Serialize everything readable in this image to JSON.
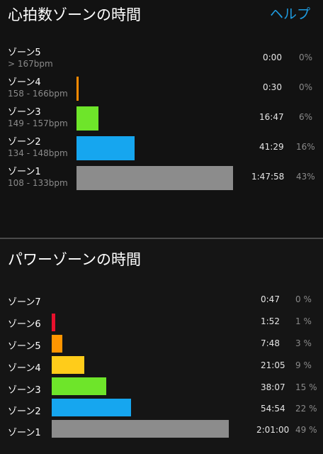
{
  "hr_section": {
    "title": "心拍数ゾーンの時間",
    "help_label": "ヘルプ",
    "zones": [
      {
        "name": "ゾーン5",
        "range": "> 167bpm",
        "time": "0:00",
        "percent": "0%",
        "share": 0,
        "color": "#ff8a00"
      },
      {
        "name": "ゾーン4",
        "range": "158 - 166bpm",
        "time": "0:30",
        "percent": "0%",
        "share": 0.005,
        "color": "#ff8a00"
      },
      {
        "name": "ゾーン3",
        "range": "149 - 157bpm",
        "time": "16:47",
        "percent": "6%",
        "share": 0.06,
        "color": "#6ee52a"
      },
      {
        "name": "ゾーン2",
        "range": "134 - 148bpm",
        "time": "41:29",
        "percent": "16%",
        "share": 0.16,
        "color": "#16a6ef"
      },
      {
        "name": "ゾーン1",
        "range": "108 - 133bpm",
        "time": "1:47:58",
        "percent": "43%",
        "share": 0.43,
        "color": "#8c8c8c"
      }
    ]
  },
  "power_section": {
    "title": "パワーゾーンの時間",
    "zones": [
      {
        "name": "ゾーン7",
        "time": "0:47",
        "percent": "0 %",
        "share": 0,
        "color": "#e8102c"
      },
      {
        "name": "ゾーン6",
        "time": "1:52",
        "percent": "1 %",
        "share": 0.01,
        "color": "#e8102c"
      },
      {
        "name": "ゾーン5",
        "time": "7:48",
        "percent": "3 %",
        "share": 0.03,
        "color": "#ff9500"
      },
      {
        "name": "ゾーン4",
        "time": "21:05",
        "percent": "9 %",
        "share": 0.09,
        "color": "#ffcc1a"
      },
      {
        "name": "ゾーン3",
        "time": "38:07",
        "percent": "15 %",
        "share": 0.15,
        "color": "#6ee52a"
      },
      {
        "name": "ゾーン2",
        "time": "54:54",
        "percent": "22 %",
        "share": 0.22,
        "color": "#16a6ef"
      },
      {
        "name": "ゾーン1",
        "time": "2:01:00",
        "percent": "49 %",
        "share": 0.49,
        "color": "#8c8c8c"
      }
    ]
  }
}
